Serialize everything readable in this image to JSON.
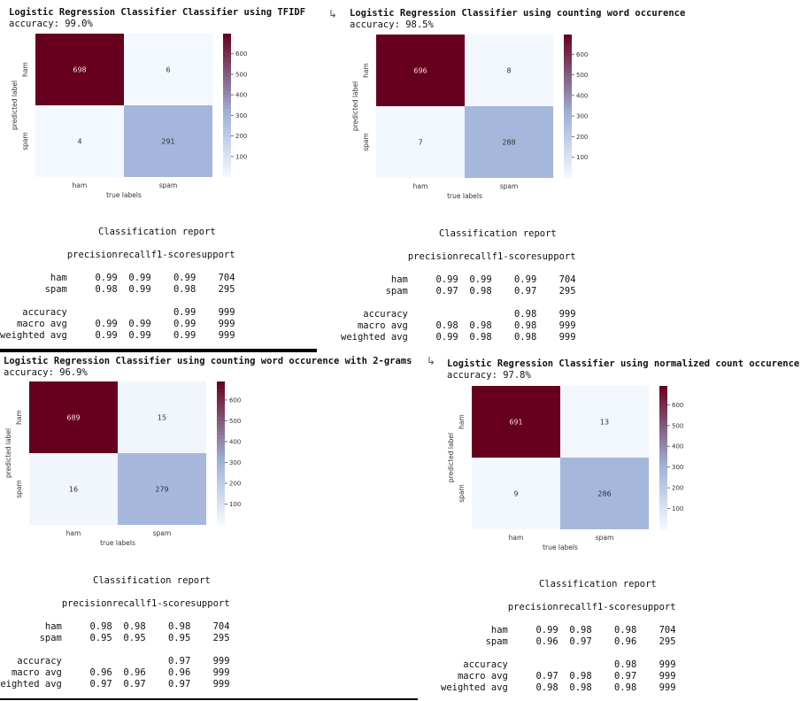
{
  "panels": [
    {
      "title": "Logistic Regression Classifier Classifier using TFIDF",
      "accuracy": "accuracy: 99.0%",
      "show_output_icon": false,
      "matrix": {
        "values": [
          [
            698,
            6
          ],
          [
            4,
            291
          ]
        ],
        "rows": [
          "ham",
          "spam"
        ],
        "cols": [
          "ham",
          "spam"
        ],
        "vmin": 0,
        "vmax": 698
      },
      "report": {
        "heading": "Classification report",
        "headers": [
          "precision",
          "recall",
          "f1-score",
          "support"
        ],
        "rows": [
          [
            "ham",
            "0.99",
            "0.99",
            "0.99",
            "704"
          ],
          [
            "spam",
            "0.98",
            "0.99",
            "0.98",
            "295"
          ],
          [
            "accuracy",
            "",
            "",
            "0.99",
            "999"
          ],
          [
            "macro avg",
            "0.99",
            "0.99",
            "0.99",
            "999"
          ],
          [
            "weighted avg",
            "0.99",
            "0.99",
            "0.99",
            "999"
          ]
        ]
      }
    },
    {
      "title": "Logistic Regression Classifier using counting word occurence",
      "accuracy": "accuracy: 98.5%",
      "show_output_icon": true,
      "matrix": {
        "values": [
          [
            696,
            8
          ],
          [
            7,
            288
          ]
        ],
        "rows": [
          "ham",
          "spam"
        ],
        "cols": [
          "ham",
          "spam"
        ],
        "vmin": 0,
        "vmax": 696
      },
      "report": {
        "heading": "Classification report",
        "headers": [
          "precision",
          "recall",
          "f1-score",
          "support"
        ],
        "rows": [
          [
            "ham",
            "0.99",
            "0.99",
            "0.99",
            "704"
          ],
          [
            "spam",
            "0.97",
            "0.98",
            "0.97",
            "295"
          ],
          [
            "accuracy",
            "",
            "",
            "0.98",
            "999"
          ],
          [
            "macro avg",
            "0.98",
            "0.98",
            "0.98",
            "999"
          ],
          [
            "weighted avg",
            "0.99",
            "0.98",
            "0.98",
            "999"
          ]
        ]
      }
    },
    {
      "title": "Logistic Regression Classifier using counting word occurence with 2-grams",
      "accuracy": "accuracy: 96.9%",
      "show_output_icon": false,
      "matrix": {
        "values": [
          [
            689,
            15
          ],
          [
            16,
            279
          ]
        ],
        "rows": [
          "ham",
          "spam"
        ],
        "cols": [
          "ham",
          "spam"
        ],
        "vmin": 0,
        "vmax": 689
      },
      "report": {
        "heading": "Classification report",
        "headers": [
          "precision",
          "recall",
          "f1-score",
          "support"
        ],
        "rows": [
          [
            "ham",
            "0.98",
            "0.98",
            "0.98",
            "704"
          ],
          [
            "spam",
            "0.95",
            "0.95",
            "0.95",
            "295"
          ],
          [
            "accuracy",
            "",
            "",
            "0.97",
            "999"
          ],
          [
            "macro avg",
            "0.96",
            "0.96",
            "0.96",
            "999"
          ],
          [
            "weighted avg",
            "0.97",
            "0.97",
            "0.97",
            "999"
          ]
        ]
      }
    },
    {
      "title": "Logistic Regression Classifier using normalized count occurence",
      "accuracy": "accuracy: 97.8%",
      "show_output_icon": true,
      "matrix": {
        "values": [
          [
            691,
            13
          ],
          [
            9,
            286
          ]
        ],
        "rows": [
          "ham",
          "spam"
        ],
        "cols": [
          "ham",
          "spam"
        ],
        "vmin": 0,
        "vmax": 691
      },
      "report": {
        "heading": "Classification report",
        "headers": [
          "precision",
          "recall",
          "f1-score",
          "support"
        ],
        "rows": [
          [
            "ham",
            "0.99",
            "0.98",
            "0.98",
            "704"
          ],
          [
            "spam",
            "0.96",
            "0.97",
            "0.96",
            "295"
          ],
          [
            "accuracy",
            "",
            "",
            "0.98",
            "999"
          ],
          [
            "macro avg",
            "0.97",
            "0.98",
            "0.97",
            "999"
          ],
          [
            "weighted avg",
            "0.98",
            "0.98",
            "0.98",
            "999"
          ]
        ]
      }
    }
  ],
  "axis": {
    "xlabel": "true labels",
    "ylabel": "predicted label"
  },
  "colorbar": {
    "ticks": [
      100,
      200,
      300,
      400,
      500,
      600
    ]
  },
  "icons": {
    "output": "output-arrow-icon"
  },
  "colors": {
    "high": "#67001f",
    "mid": "#9eb1d8",
    "low": "#f5faff"
  }
}
